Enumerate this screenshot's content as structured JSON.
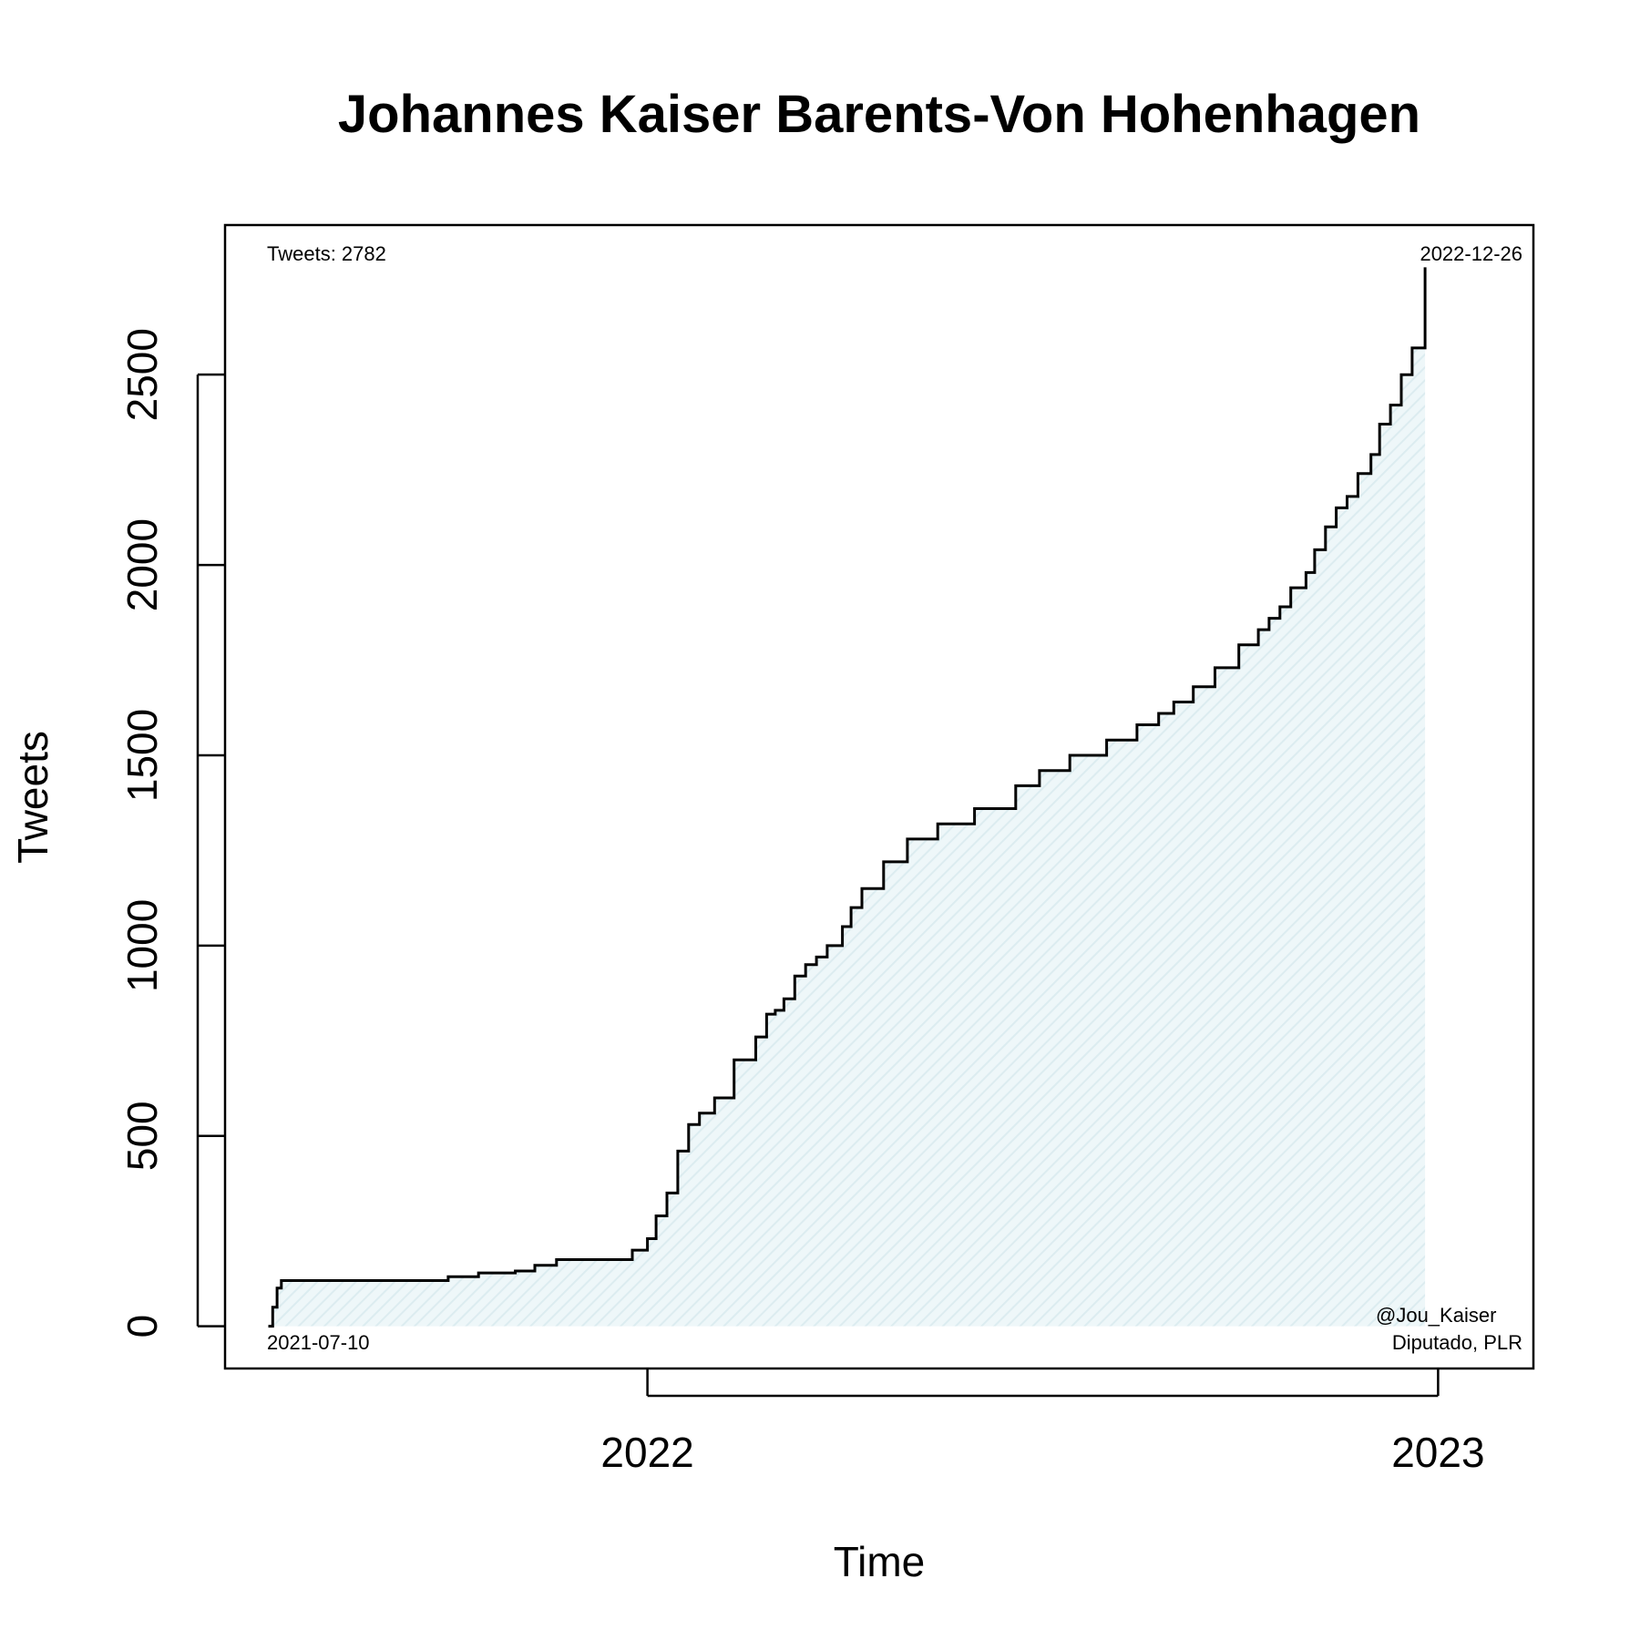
{
  "chart_data": {
    "type": "line",
    "title": "Johannes Kaiser Barents-Von Hohenhagen",
    "xlabel": "Time",
    "ylabel": "Tweets",
    "x_ticks": [
      "2022",
      "2023"
    ],
    "y_ticks": [
      "0",
      "500",
      "1000",
      "1500",
      "2000",
      "2500"
    ],
    "y_tick_values": [
      0,
      500,
      1000,
      1500,
      2000,
      2500
    ],
    "x_tick_dates": [
      "2022-01-01",
      "2023-01-01"
    ],
    "xlim": [
      "2021-06-20",
      "2023-02-14"
    ],
    "ylim": [
      -111,
      2893
    ],
    "grid": false,
    "fill_color": "#e3f1f4",
    "line_color": "#000000",
    "annotations": {
      "tweet_count": "Tweets: 2782",
      "end_date": "2022-12-26",
      "start_date": "2021-07-10",
      "handle": "@Jou_Kaiser",
      "role": "Diputado, PLR"
    },
    "series": [
      {
        "x": [
          "2021-07-10",
          "2021-07-12",
          "2021-07-14",
          "2021-07-16",
          "2021-09-01",
          "2021-10-01",
          "2021-10-15",
          "2021-11-01",
          "2021-11-10",
          "2021-11-20",
          "2021-12-15",
          "2021-12-20",
          "2021-12-25",
          "2022-01-01",
          "2022-01-05",
          "2022-01-10",
          "2022-01-15",
          "2022-01-20",
          "2022-01-25",
          "2022-02-01",
          "2022-02-10",
          "2022-02-20",
          "2022-02-25",
          "2022-03-01",
          "2022-03-05",
          "2022-03-10",
          "2022-03-15",
          "2022-03-20",
          "2022-03-25",
          "2022-04-01",
          "2022-04-05",
          "2022-04-10",
          "2022-04-20",
          "2022-05-01",
          "2022-05-15",
          "2022-06-01",
          "2022-06-20",
          "2022-07-01",
          "2022-07-15",
          "2022-08-01",
          "2022-08-15",
          "2022-08-25",
          "2022-09-01",
          "2022-09-10",
          "2022-09-20",
          "2022-10-01",
          "2022-10-10",
          "2022-10-15",
          "2022-10-20",
          "2022-10-25",
          "2022-11-01",
          "2022-11-05",
          "2022-11-10",
          "2022-11-15",
          "2022-11-20",
          "2022-11-25",
          "2022-12-01",
          "2022-12-05",
          "2022-12-10",
          "2022-12-15",
          "2022-12-20",
          "2022-12-26"
        ],
        "values": [
          0,
          50,
          100,
          120,
          120,
          130,
          140,
          145,
          160,
          175,
          175,
          175,
          200,
          230,
          290,
          350,
          460,
          530,
          560,
          600,
          700,
          760,
          820,
          830,
          860,
          920,
          950,
          970,
          1000,
          1050,
          1100,
          1150,
          1220,
          1280,
          1320,
          1360,
          1420,
          1460,
          1500,
          1540,
          1580,
          1610,
          1640,
          1680,
          1730,
          1790,
          1830,
          1860,
          1890,
          1940,
          1980,
          2040,
          2100,
          2150,
          2180,
          2240,
          2290,
          2370,
          2420,
          2500,
          2570,
          2782
        ]
      }
    ]
  }
}
